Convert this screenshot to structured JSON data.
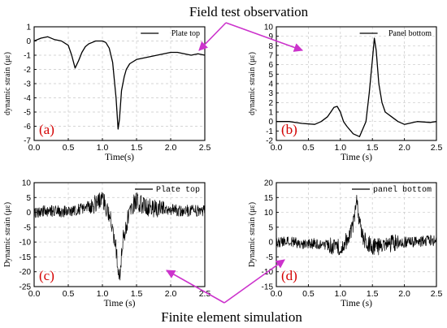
{
  "banner_top": "Field test observation",
  "banner_bottom": "Finite element simulation",
  "colors": {
    "arrow": "#cc33cc",
    "tag": "#d40000",
    "grid": "#c8c8c8",
    "line": "#000000"
  },
  "chart_data": [
    {
      "type": "line",
      "panel_tag": "(a)",
      "legend": "Plate top",
      "xlabel": "Time(s)",
      "ylabel": "dynamic strain (με)",
      "xlim": [
        0,
        2.5
      ],
      "ylim": [
        -7,
        1
      ],
      "xticks": [
        "0.0",
        "0.5",
        "1.0",
        "1.5",
        "2.0",
        "2.5"
      ],
      "yticks": [
        "-7",
        "-6",
        "-5",
        "-4",
        "-3",
        "-2",
        "-1",
        "0",
        "1"
      ],
      "grid": true,
      "legend_position": "top-right",
      "x": [
        0.0,
        0.1,
        0.2,
        0.3,
        0.4,
        0.5,
        0.55,
        0.6,
        0.65,
        0.7,
        0.75,
        0.8,
        0.85,
        0.9,
        0.95,
        1.0,
        1.05,
        1.1,
        1.15,
        1.2,
        1.23,
        1.25,
        1.28,
        1.32,
        1.35,
        1.4,
        1.5,
        1.6,
        1.7,
        1.8,
        1.9,
        2.0,
        2.1,
        2.2,
        2.3,
        2.4,
        2.5
      ],
      "y": [
        0.0,
        0.2,
        0.3,
        0.1,
        0.0,
        -0.3,
        -1.0,
        -1.9,
        -1.4,
        -0.8,
        -0.4,
        -0.2,
        -0.1,
        0.0,
        0.0,
        0.0,
        -0.1,
        -0.5,
        -1.5,
        -4.0,
        -6.2,
        -5.5,
        -3.5,
        -2.5,
        -2.0,
        -1.6,
        -1.3,
        -1.2,
        -1.1,
        -1.0,
        -0.9,
        -0.8,
        -0.8,
        -0.9,
        -1.0,
        -0.9,
        -1.0
      ]
    },
    {
      "type": "line",
      "panel_tag": "(b)",
      "legend": "Panel bottom",
      "xlabel": "Time (s)",
      "ylabel": "dynamic strain (με)",
      "xlim": [
        0,
        2.5
      ],
      "ylim": [
        -2,
        10
      ],
      "xticks": [
        "0.0",
        "0.5",
        "1.0",
        "1.5",
        "2.0",
        "2.5"
      ],
      "yticks": [
        "-2",
        "-1",
        "0",
        "1",
        "2",
        "3",
        "4",
        "5",
        "6",
        "7",
        "8",
        "9",
        "10"
      ],
      "grid": true,
      "legend_position": "top-right",
      "x": [
        0.0,
        0.2,
        0.4,
        0.6,
        0.7,
        0.8,
        0.85,
        0.9,
        0.95,
        1.0,
        1.05,
        1.1,
        1.2,
        1.3,
        1.4,
        1.45,
        1.5,
        1.53,
        1.56,
        1.6,
        1.65,
        1.7,
        1.8,
        1.9,
        2.0,
        2.2,
        2.4,
        2.5
      ],
      "y": [
        0.0,
        0.0,
        -0.2,
        -0.3,
        0.0,
        0.5,
        1.0,
        1.5,
        1.6,
        1.0,
        0.0,
        -0.5,
        -1.3,
        -1.6,
        0.0,
        3.0,
        6.5,
        8.8,
        7.5,
        4.0,
        2.0,
        1.0,
        0.5,
        0.0,
        -0.3,
        0.0,
        -0.1,
        0.0
      ]
    },
    {
      "type": "line",
      "panel_tag": "(c)",
      "legend": "Plate top",
      "xlabel": "Time (s)",
      "ylabel": "Dynamic strain (με)",
      "xlim": [
        0,
        2.5
      ],
      "ylim": [
        -25,
        10
      ],
      "xticks": [
        "0.0",
        "0.5",
        "1.0",
        "1.5",
        "2.0",
        "2.5"
      ],
      "yticks": [
        "-25",
        "-20",
        "-15",
        "-10",
        "-5",
        "0",
        "5",
        "10"
      ],
      "grid": true,
      "legend_position": "top-right",
      "x": [
        0.0,
        0.2,
        0.4,
        0.6,
        0.8,
        0.9,
        1.0,
        1.05,
        1.1,
        1.15,
        1.2,
        1.23,
        1.25,
        1.27,
        1.3,
        1.35,
        1.4,
        1.45,
        1.5,
        1.6,
        1.8,
        2.0,
        2.2,
        2.4,
        2.5
      ],
      "y": [
        0.0,
        0.5,
        0.3,
        0.8,
        2.0,
        3.0,
        4.5,
        2.0,
        -1.0,
        -5.0,
        -12.0,
        -18.0,
        -23.0,
        -17.0,
        -10.0,
        -4.0,
        0.0,
        2.5,
        4.0,
        2.0,
        1.0,
        0.8,
        0.5,
        0.5,
        0.8
      ],
      "noise_amplitude": 2.0
    },
    {
      "type": "line",
      "panel_tag": "(d)",
      "legend": "panel bottom",
      "xlabel": "Time (s)",
      "ylabel": "Dynamic strain (με)",
      "xlim": [
        0,
        2.5
      ],
      "ylim": [
        -15,
        20
      ],
      "xticks": [
        "0.0",
        "0.5",
        "1.0",
        "1.5",
        "2.0",
        "2.5"
      ],
      "yticks": [
        "-15",
        "-10",
        "-5",
        "0",
        "5",
        "10",
        "15",
        "20"
      ],
      "grid": true,
      "legend_position": "top-right",
      "x": [
        0.0,
        0.2,
        0.4,
        0.6,
        0.8,
        0.9,
        1.0,
        1.05,
        1.1,
        1.15,
        1.2,
        1.23,
        1.25,
        1.27,
        1.3,
        1.35,
        1.4,
        1.5,
        1.6,
        1.8,
        2.0,
        2.2,
        2.4,
        2.5
      ],
      "y": [
        0.0,
        0.0,
        -0.5,
        -0.5,
        -1.0,
        -1.5,
        -2.0,
        -1.0,
        0.5,
        2.5,
        6.0,
        11.0,
        16.0,
        11.0,
        6.0,
        2.0,
        0.0,
        -1.5,
        -1.5,
        -0.5,
        0.0,
        0.0,
        0.5,
        0.5
      ],
      "noise_amplitude": 1.8
    }
  ]
}
